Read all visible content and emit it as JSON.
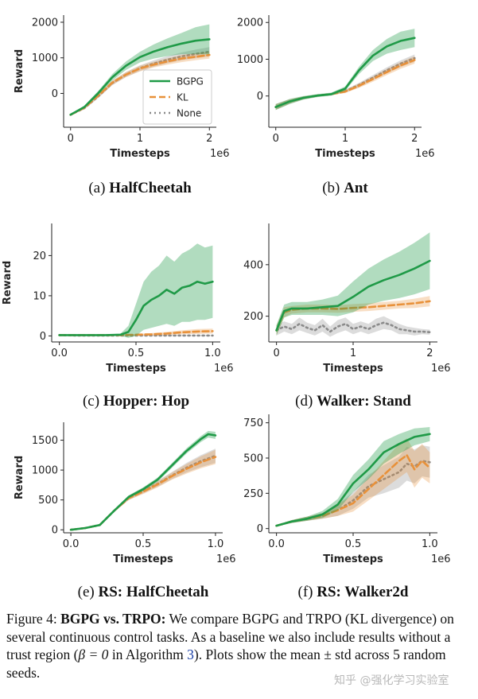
{
  "figure": {
    "caption_label": "Figure 4:",
    "caption_title": "BGPG vs. TRPO:",
    "caption_text_1": "We compare BGPG and TRPO (KL divergence) on several continuous control tasks. As a baseline we also include results without a trust region (",
    "caption_math": "β = 0",
    "caption_text_2": " in Algorithm ",
    "caption_ref": "3",
    "caption_text_3": "). Plots show the mean ± std across 5 random seeds.",
    "watermark": "知乎 @强化学习实验室"
  },
  "colors": {
    "bgpg": "#1f9a47",
    "kl": "#e8913a",
    "none": "#8a8a8a",
    "axis": "#222222"
  },
  "legend": [
    "BGPG",
    "KL",
    "None"
  ],
  "chart_data": [
    {
      "type": "line",
      "panel": "(a)",
      "title": "HalfCheetah",
      "xlabel": "Timesteps",
      "ylabel": "Reward",
      "xscale": "1e6",
      "xlim": [
        -0.1,
        2.1
      ],
      "ylim": [
        -950,
        2200
      ],
      "xticks": [
        0,
        1,
        2
      ],
      "xticklabels": [
        "0",
        "1",
        "2"
      ],
      "yticks": [
        0,
        1000,
        2000
      ],
      "yticklabels": [
        "0",
        "1000",
        "2000"
      ],
      "legend": true,
      "series": [
        {
          "name": "BGPG",
          "x": [
            0,
            0.2,
            0.4,
            0.6,
            0.8,
            1.0,
            1.2,
            1.4,
            1.6,
            1.8,
            2.0
          ],
          "mean": [
            -600,
            -380,
            10,
            450,
            780,
            1020,
            1180,
            1300,
            1400,
            1480,
            1520
          ],
          "std": [
            20,
            40,
            60,
            90,
            120,
            150,
            200,
            250,
            300,
            380,
            420
          ]
        },
        {
          "name": "KL",
          "x": [
            0,
            0.2,
            0.4,
            0.6,
            0.8,
            1.0,
            1.2,
            1.4,
            1.6,
            1.8,
            2.0
          ],
          "mean": [
            -600,
            -400,
            -60,
            300,
            530,
            700,
            810,
            900,
            980,
            1030,
            1080
          ],
          "std": [
            20,
            40,
            50,
            60,
            70,
            80,
            80,
            90,
            100,
            100,
            100
          ]
        },
        {
          "name": "None",
          "x": [
            0,
            0.2,
            0.4,
            0.6,
            0.8,
            1.0,
            1.2,
            1.4,
            1.6,
            1.8,
            2.0
          ],
          "mean": [
            -600,
            -410,
            -80,
            290,
            530,
            710,
            840,
            950,
            1040,
            1110,
            1170
          ],
          "std": [
            20,
            40,
            50,
            60,
            70,
            80,
            90,
            100,
            110,
            120,
            130
          ]
        }
      ]
    },
    {
      "type": "line",
      "panel": "(b)",
      "title": "Ant",
      "xlabel": "Timesteps",
      "ylabel": "",
      "xscale": "1e6",
      "xlim": [
        -0.1,
        2.1
      ],
      "ylim": [
        -850,
        2200
      ],
      "xticks": [
        0,
        1,
        2
      ],
      "xticklabels": [
        "0",
        "1",
        "2"
      ],
      "yticks": [
        0,
        1000,
        2000
      ],
      "yticklabels": [
        "0",
        "1000",
        "2000"
      ],
      "series": [
        {
          "name": "BGPG",
          "x": [
            0,
            0.2,
            0.4,
            0.6,
            0.8,
            1.0,
            1.2,
            1.4,
            1.6,
            1.8,
            2.0
          ],
          "mean": [
            -300,
            -150,
            -50,
            10,
            50,
            200,
            700,
            1100,
            1350,
            1500,
            1580
          ],
          "std": [
            80,
            70,
            50,
            40,
            40,
            60,
            100,
            150,
            200,
            250,
            250
          ]
        },
        {
          "name": "KL",
          "x": [
            0,
            0.2,
            0.4,
            0.6,
            0.8,
            1.0,
            1.2,
            1.4,
            1.6,
            1.8,
            2.0
          ],
          "mean": [
            -300,
            -150,
            -50,
            10,
            50,
            120,
            280,
            460,
            650,
            830,
            980
          ],
          "std": [
            80,
            60,
            40,
            30,
            30,
            40,
            60,
            70,
            80,
            90,
            100
          ]
        },
        {
          "name": "None",
          "x": [
            0,
            0.2,
            0.4,
            0.6,
            0.8,
            1.0,
            1.2,
            1.4,
            1.6,
            1.8,
            2.0
          ],
          "mean": [
            -300,
            -150,
            -50,
            10,
            50,
            130,
            300,
            500,
            700,
            880,
            1030
          ],
          "std": [
            80,
            60,
            40,
            30,
            30,
            40,
            60,
            70,
            80,
            90,
            100
          ]
        }
      ]
    },
    {
      "type": "line",
      "panel": "(c)",
      "title": "Hopper: Hop",
      "xlabel": "Timesteps",
      "ylabel": "Reward",
      "xscale": "1e6",
      "xlim": [
        -0.05,
        1.05
      ],
      "ylim": [
        -1.5,
        28
      ],
      "xticks": [
        0,
        0.5,
        1.0
      ],
      "xticklabels": [
        "0.0",
        "0.5",
        "1.0"
      ],
      "yticks": [
        0,
        10,
        20
      ],
      "yticklabels": [
        "0",
        "10",
        "20"
      ],
      "series": [
        {
          "name": "BGPG",
          "x": [
            0,
            0.1,
            0.2,
            0.3,
            0.4,
            0.45,
            0.5,
            0.55,
            0.6,
            0.65,
            0.7,
            0.75,
            0.8,
            0.85,
            0.9,
            0.95,
            1.0
          ],
          "mean": [
            0.2,
            0.2,
            0.2,
            0.2,
            0.3,
            1.0,
            4.0,
            7.5,
            9.0,
            10.0,
            11.5,
            10.5,
            12.0,
            12.5,
            13.5,
            13.0,
            13.5
          ],
          "std": [
            0.2,
            0.1,
            0.1,
            0.1,
            0.3,
            1.5,
            4.0,
            6.0,
            7.0,
            7.5,
            8.5,
            8.0,
            8.5,
            9.0,
            9.5,
            9.0,
            9.0
          ]
        },
        {
          "name": "KL",
          "x": [
            0,
            0.1,
            0.2,
            0.3,
            0.4,
            0.5,
            0.6,
            0.7,
            0.8,
            0.9,
            1.0
          ],
          "mean": [
            0.2,
            0.2,
            0.2,
            0.2,
            0.2,
            0.3,
            0.4,
            0.6,
            0.9,
            1.1,
            1.2
          ],
          "std": [
            0.1,
            0.1,
            0.1,
            0.1,
            0.1,
            0.2,
            0.3,
            0.4,
            0.5,
            0.6,
            0.6
          ]
        },
        {
          "name": "None",
          "x": [
            0,
            0.1,
            0.2,
            0.3,
            0.4,
            0.5,
            0.6,
            0.7,
            0.8,
            0.9,
            1.0
          ],
          "mean": [
            0.2,
            0.1,
            0.1,
            0.1,
            0.1,
            0.1,
            0.1,
            0.1,
            0.1,
            0.1,
            0.1
          ],
          "std": [
            0.1,
            0.1,
            0.1,
            0.1,
            0.1,
            0.1,
            0.1,
            0.1,
            0.1,
            0.1,
            0.1
          ]
        }
      ]
    },
    {
      "type": "line",
      "panel": "(d)",
      "title": "Walker: Stand",
      "xlabel": "Timesteps",
      "ylabel": "",
      "xscale": "1e6",
      "xlim": [
        -0.1,
        2.1
      ],
      "ylim": [
        100,
        560
      ],
      "xticks": [
        0,
        1,
        2
      ],
      "xticklabels": [
        "0",
        "1",
        "2"
      ],
      "yticks": [
        200,
        400
      ],
      "yticklabels": [
        "200",
        "400"
      ],
      "series": [
        {
          "name": "BGPG",
          "x": [
            0,
            0.1,
            0.2,
            0.4,
            0.6,
            0.8,
            1.0,
            1.2,
            1.4,
            1.6,
            1.8,
            2.0
          ],
          "mean": [
            145,
            220,
            230,
            230,
            235,
            240,
            275,
            315,
            340,
            360,
            385,
            415
          ],
          "std": [
            20,
            25,
            25,
            25,
            30,
            40,
            60,
            70,
            80,
            90,
            100,
            110
          ]
        },
        {
          "name": "KL",
          "x": [
            0,
            0.1,
            0.2,
            0.4,
            0.6,
            0.8,
            1.0,
            1.2,
            1.4,
            1.6,
            1.8,
            2.0
          ],
          "mean": [
            145,
            215,
            225,
            230,
            230,
            228,
            232,
            235,
            240,
            245,
            250,
            258
          ],
          "std": [
            20,
            20,
            15,
            15,
            15,
            15,
            15,
            15,
            15,
            15,
            18,
            20
          ]
        },
        {
          "name": "None",
          "x": [
            0,
            0.1,
            0.2,
            0.3,
            0.4,
            0.5,
            0.6,
            0.7,
            0.8,
            0.9,
            1.0,
            1.1,
            1.2,
            1.3,
            1.4,
            1.5,
            1.6,
            1.7,
            1.8,
            1.9,
            2.0
          ],
          "mean": [
            145,
            160,
            150,
            170,
            155,
            145,
            165,
            140,
            160,
            170,
            150,
            160,
            150,
            165,
            175,
            165,
            150,
            145,
            140,
            140,
            138
          ],
          "std": [
            20,
            20,
            20,
            25,
            20,
            20,
            25,
            20,
            25,
            25,
            20,
            20,
            20,
            25,
            25,
            20,
            20,
            15,
            15,
            10,
            10
          ]
        }
      ]
    },
    {
      "type": "line",
      "panel": "(e)",
      "title": "RS: HalfCheetah",
      "xlabel": "Timesteps",
      "ylabel": "Reward",
      "xscale": "1e6",
      "xlim": [
        -0.05,
        1.05
      ],
      "ylim": [
        -50,
        1800
      ],
      "xticks": [
        0,
        0.5,
        1.0
      ],
      "xticklabels": [
        "0.0",
        "0.5",
        "1.0"
      ],
      "yticks": [
        0,
        500,
        1000,
        1500
      ],
      "yticklabels": [
        "0",
        "500",
        "1000",
        "1500"
      ],
      "series": [
        {
          "name": "BGPG",
          "x": [
            0,
            0.1,
            0.2,
            0.3,
            0.4,
            0.5,
            0.6,
            0.7,
            0.8,
            0.9,
            0.95,
            1.0
          ],
          "mean": [
            0,
            30,
            80,
            320,
            550,
            680,
            840,
            1080,
            1320,
            1520,
            1600,
            1580
          ],
          "std": [
            5,
            10,
            15,
            20,
            25,
            30,
            35,
            40,
            45,
            50,
            55,
            60
          ]
        },
        {
          "name": "KL",
          "x": [
            0,
            0.1,
            0.2,
            0.3,
            0.4,
            0.5,
            0.6,
            0.7,
            0.8,
            0.9,
            1.0
          ],
          "mean": [
            0,
            30,
            80,
            320,
            530,
            640,
            760,
            900,
            1020,
            1130,
            1220
          ],
          "std": [
            5,
            10,
            15,
            20,
            30,
            40,
            50,
            60,
            80,
            100,
            120
          ]
        },
        {
          "name": "None",
          "x": [
            0,
            0.1,
            0.2,
            0.3,
            0.4,
            0.5,
            0.6,
            0.7,
            0.8,
            0.9,
            1.0
          ],
          "mean": [
            0,
            30,
            80,
            320,
            530,
            650,
            770,
            910,
            1040,
            1150,
            1240
          ],
          "std": [
            5,
            10,
            15,
            20,
            30,
            40,
            50,
            60,
            80,
            100,
            120
          ]
        }
      ]
    },
    {
      "type": "line",
      "panel": "(f)",
      "title": "RS: Walker2d",
      "xlabel": "Timesteps",
      "ylabel": "",
      "xscale": "1e6",
      "xlim": [
        -0.05,
        1.05
      ],
      "ylim": [
        -30,
        810
      ],
      "xticks": [
        0,
        0.5,
        1.0
      ],
      "xticklabels": [
        "0.0",
        "0.5",
        "1.0"
      ],
      "yticks": [
        0,
        250,
        500,
        750
      ],
      "yticklabels": [
        "0",
        "250",
        "500",
        "750"
      ],
      "series": [
        {
          "name": "BGPG",
          "x": [
            0,
            0.1,
            0.2,
            0.3,
            0.4,
            0.5,
            0.6,
            0.7,
            0.8,
            0.9,
            1.0
          ],
          "mean": [
            20,
            50,
            70,
            100,
            170,
            320,
            420,
            540,
            600,
            650,
            670
          ],
          "std": [
            5,
            10,
            15,
            25,
            40,
            60,
            70,
            80,
            70,
            60,
            50
          ]
        },
        {
          "name": "KL",
          "x": [
            0,
            0.1,
            0.2,
            0.3,
            0.4,
            0.5,
            0.6,
            0.7,
            0.8,
            0.85,
            0.9,
            0.95,
            1.0
          ],
          "mean": [
            20,
            50,
            70,
            90,
            130,
            180,
            280,
            380,
            480,
            520,
            420,
            480,
            430
          ],
          "std": [
            5,
            10,
            15,
            20,
            40,
            60,
            80,
            100,
            120,
            120,
            130,
            120,
            110
          ]
        },
        {
          "name": "None",
          "x": [
            0,
            0.1,
            0.2,
            0.3,
            0.4,
            0.5,
            0.6,
            0.7,
            0.8,
            0.85,
            0.9,
            0.95,
            1.0
          ],
          "mean": [
            20,
            50,
            70,
            90,
            130,
            200,
            300,
            350,
            400,
            460,
            440,
            480,
            470
          ],
          "std": [
            5,
            10,
            15,
            20,
            40,
            60,
            80,
            100,
            110,
            120,
            120,
            110,
            110
          ]
        }
      ]
    }
  ]
}
